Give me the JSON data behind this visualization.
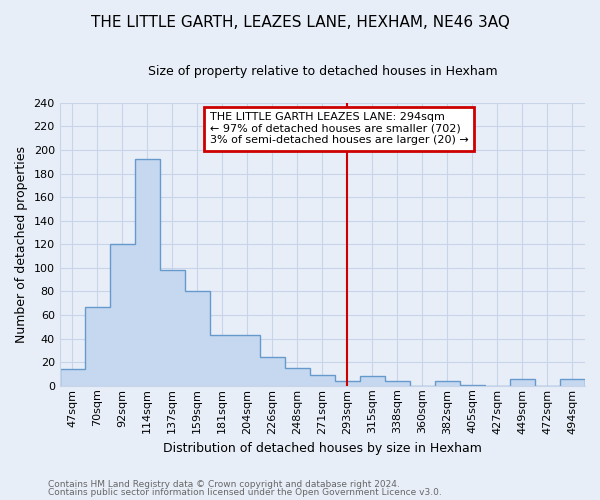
{
  "title": "THE LITTLE GARTH, LEAZES LANE, HEXHAM, NE46 3AQ",
  "subtitle": "Size of property relative to detached houses in Hexham",
  "xlabel": "Distribution of detached houses by size in Hexham",
  "ylabel": "Number of detached properties",
  "footnote1": "Contains HM Land Registry data © Crown copyright and database right 2024.",
  "footnote2": "Contains public sector information licensed under the Open Government Licence v3.0.",
  "bar_labels": [
    "47sqm",
    "70sqm",
    "92sqm",
    "114sqm",
    "137sqm",
    "159sqm",
    "181sqm",
    "204sqm",
    "226sqm",
    "248sqm",
    "271sqm",
    "293sqm",
    "315sqm",
    "338sqm",
    "360sqm",
    "382sqm",
    "405sqm",
    "427sqm",
    "449sqm",
    "472sqm",
    "494sqm"
  ],
  "bar_values": [
    14,
    67,
    120,
    192,
    98,
    80,
    43,
    43,
    24,
    15,
    9,
    4,
    8,
    4,
    0,
    4,
    1,
    0,
    6,
    0,
    6
  ],
  "bar_color": "#c5d8f0",
  "bar_edge_color": "#6699cc",
  "grid_color": "#c8d4e8",
  "background_color": "#e8eef8",
  "annotation_box_text": "THE LITTLE GARTH LEAZES LANE: 294sqm\n← 97% of detached houses are smaller (702)\n3% of semi-detached houses are larger (20) →",
  "annotation_box_color": "#cc0000",
  "vline_x_index": 11,
  "ylim": [
    0,
    240
  ],
  "yticks": [
    0,
    20,
    40,
    60,
    80,
    100,
    120,
    140,
    160,
    180,
    200,
    220,
    240
  ],
  "title_fontsize": 11,
  "subtitle_fontsize": 9,
  "ylabel_fontsize": 9,
  "xlabel_fontsize": 9,
  "tick_fontsize": 8,
  "footnote_fontsize": 6.5,
  "footnote_color": "#666666"
}
